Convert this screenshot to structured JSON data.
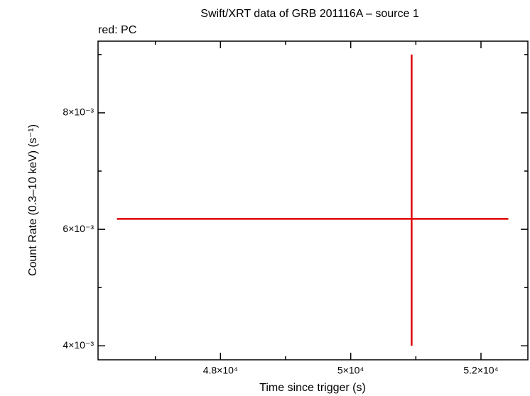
{
  "chart_data": {
    "type": "errorbar",
    "title": "Swift/XRT data of GRB 201116A – source 1",
    "subtitle": "red: PC",
    "x_label": "Time since trigger (s)",
    "y_label": "Count Rate (0.3–10 keV) (s⁻¹)",
    "xlim": [
      46120,
      52720
    ],
    "ylim": [
      0.00376,
      0.00923
    ],
    "xticks": [
      {
        "value": 48000,
        "label": "4.8×10⁴"
      },
      {
        "value": 50000,
        "label": "5×10⁴"
      },
      {
        "value": 52000,
        "label": "5.2×10⁴"
      }
    ],
    "yticks": [
      {
        "value": 0.004,
        "label": "4×10⁻³"
      },
      {
        "value": 0.006,
        "label": "6×10⁻³"
      },
      {
        "value": 0.008,
        "label": "8×10⁻³"
      }
    ],
    "xminorticks": [
      47000,
      49000,
      51000
    ],
    "yminorticks": [
      0.005,
      0.007,
      0.009
    ],
    "series": [
      {
        "name": "PC",
        "color": "#e00000",
        "x": [
          50935
        ],
        "values": [
          0.00618
        ],
        "x_lower": [
          46410
        ],
        "x_upper": [
          52420
        ],
        "y_lower": [
          0.004
        ],
        "y_upper": [
          0.009
        ]
      }
    ]
  }
}
